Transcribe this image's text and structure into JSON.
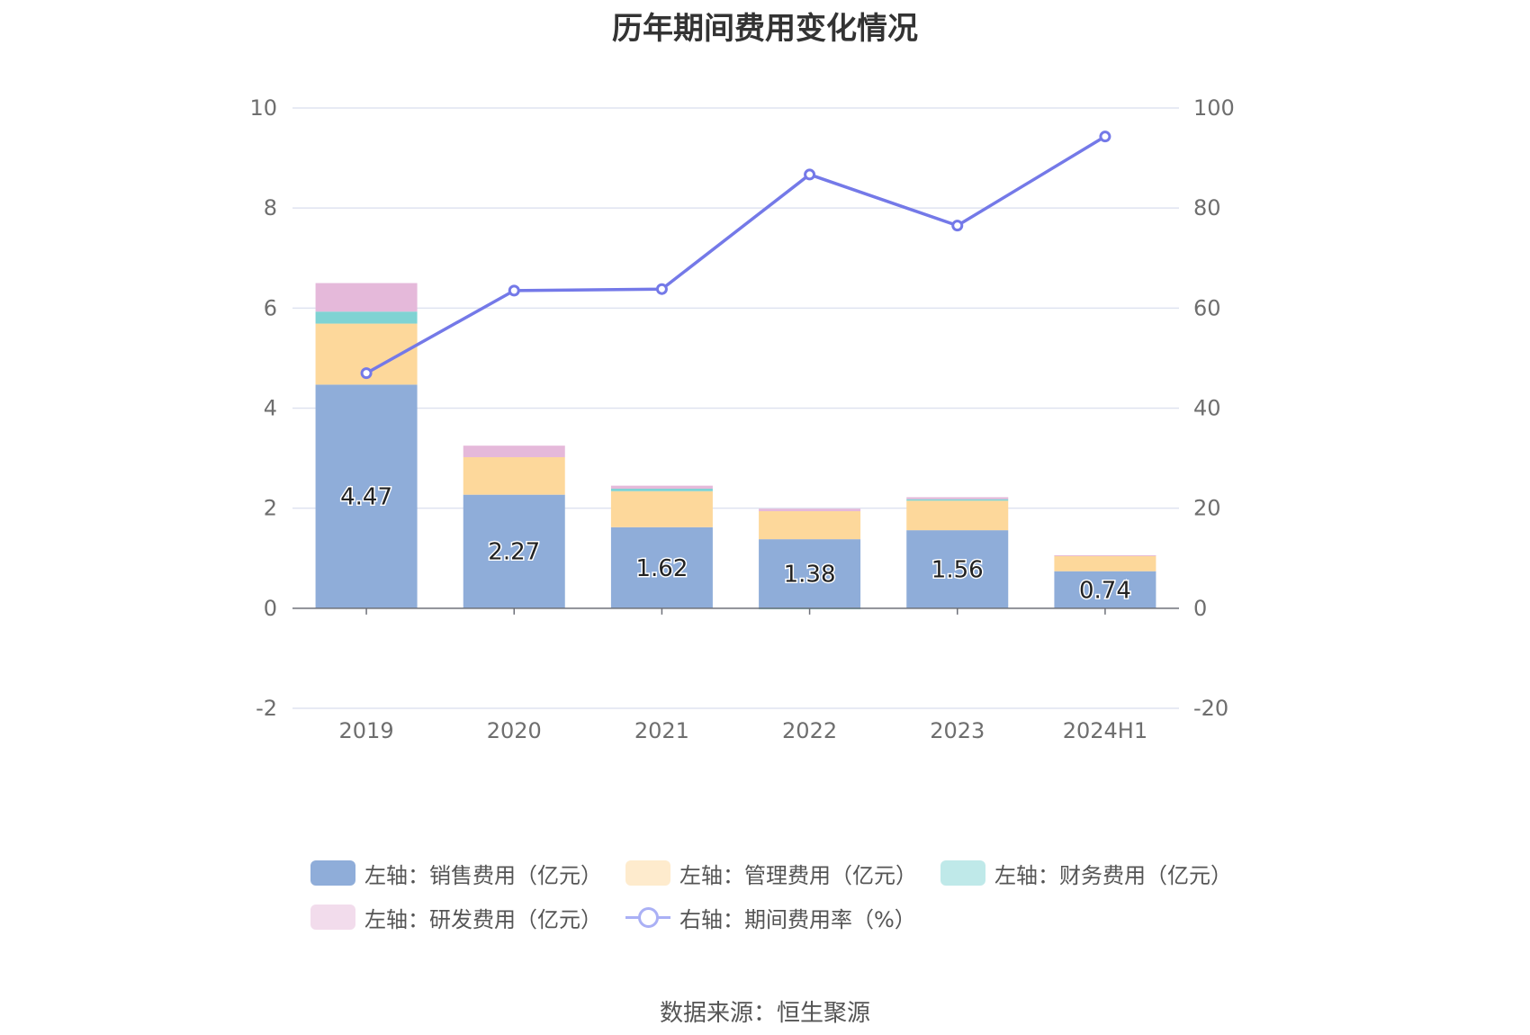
{
  "chart_data": {
    "type": "bar",
    "title": "历年期间费用变化情况",
    "categories": [
      "2019",
      "2020",
      "2021",
      "2022",
      "2023",
      "2024H1"
    ],
    "stacked": true,
    "left_axis": {
      "min": -2,
      "max": 10,
      "ticks": [
        "10",
        "8",
        "6",
        "4",
        "2",
        "0",
        "-2"
      ]
    },
    "right_axis": {
      "min": -20,
      "max": 100,
      "ticks": [
        "100",
        "80",
        "60",
        "40",
        "20",
        "0",
        "-20"
      ]
    },
    "series": [
      {
        "name": "左轴：销售费用（亿元）",
        "type": "bar",
        "axis": "left",
        "color": "#8fadd9",
        "values": [
          4.47,
          2.27,
          1.62,
          1.38,
          1.56,
          0.74
        ],
        "labels": [
          "4.47",
          "2.27",
          "1.62",
          "1.38",
          "1.56",
          "0.74"
        ]
      },
      {
        "name": "左轴：管理费用（亿元）",
        "type": "bar",
        "axis": "left",
        "color": "#fdd89b",
        "values": [
          1.22,
          0.75,
          0.72,
          0.56,
          0.59,
          0.31
        ]
      },
      {
        "name": "左轴：财务费用（亿元）",
        "type": "bar",
        "axis": "left",
        "color": "#7fd3d3",
        "values": [
          0.24,
          0.0,
          0.05,
          -0.02,
          0.03,
          0.0
        ]
      },
      {
        "name": "左轴：研发费用（亿元）",
        "type": "bar",
        "axis": "left",
        "color": "#e5b9da",
        "values": [
          0.57,
          0.23,
          0.06,
          0.05,
          0.04,
          0.01
        ]
      },
      {
        "name": "右轴：期间费用率（%）",
        "type": "line",
        "axis": "right",
        "color": "#7479e8",
        "values": [
          47.0,
          63.5,
          63.8,
          86.7,
          76.5,
          94.3
        ]
      }
    ],
    "legend_position": "bottom",
    "grid": true
  },
  "legend": {
    "items": [
      {
        "label": "左轴：销售费用（亿元）",
        "swatch": "#8fadd9",
        "kind": "bar"
      },
      {
        "label": "左轴：管理费用（亿元）",
        "swatch": "#feebcd",
        "kind": "bar"
      },
      {
        "label": "左轴：财务费用（亿元）",
        "swatch": "#bfe9e9",
        "kind": "bar"
      },
      {
        "label": "左轴：研发费用（亿元）",
        "swatch": "#f2dcec",
        "kind": "bar"
      },
      {
        "label": "右轴：期间费用率（%）",
        "swatch": "#aab0f5",
        "kind": "line"
      }
    ]
  },
  "source": "数据来源：恒生聚源"
}
